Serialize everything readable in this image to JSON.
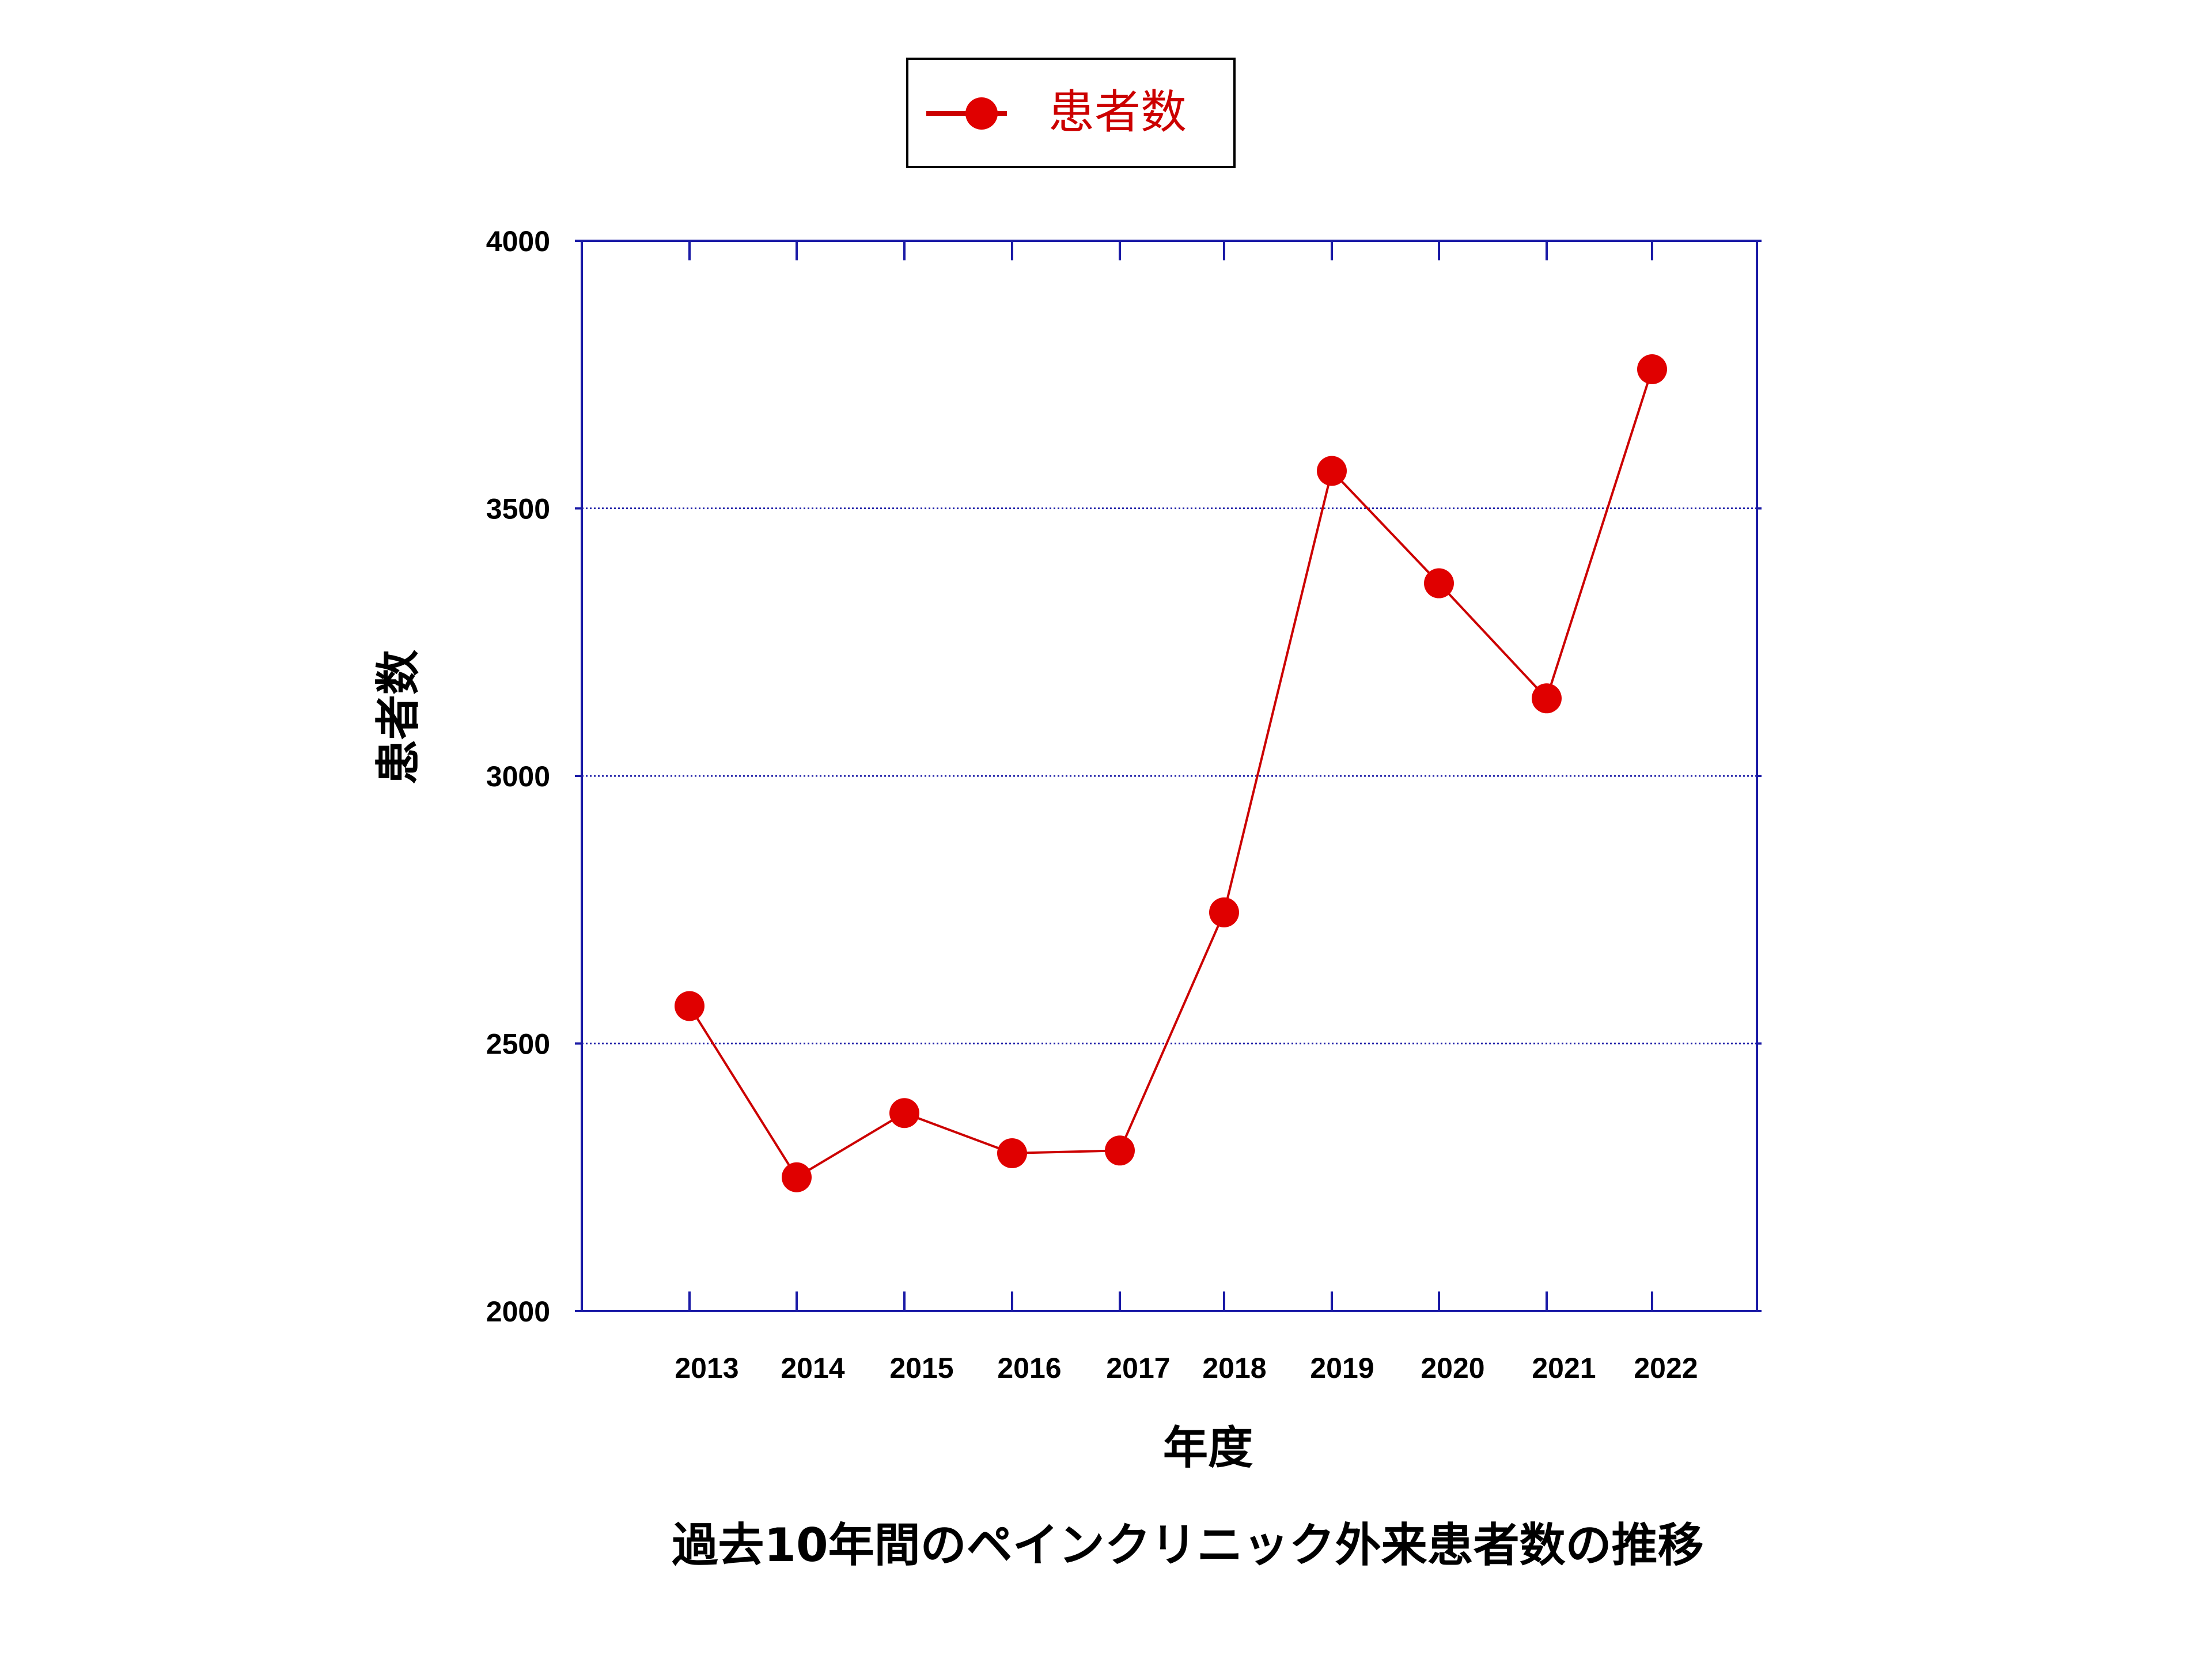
{
  "chart_data": {
    "type": "line",
    "caption": "過去10年間のペインクリニック外来患者数の推移",
    "xlabel": "年度",
    "ylabel": "患者数",
    "categories": [
      "2013",
      "2014",
      "2015",
      "2016",
      "2017",
      "2018",
      "2019",
      "2020",
      "2021",
      "2022"
    ],
    "series": [
      {
        "name": "患者数",
        "values": [
          2570,
          2250,
          2370,
          2295,
          2300,
          2745,
          3570,
          3360,
          3145,
          3760
        ]
      }
    ],
    "ylim": [
      2000,
      4000
    ],
    "yticks": [
      "2000",
      "2500",
      "3000",
      "3500",
      "4000"
    ],
    "grid": "horizontal dotted",
    "legend_position": "top",
    "colors": {
      "series": "#cc0000",
      "marker": "#e00000",
      "axis": "#1a1aa6",
      "grid": "#1a1aa6"
    }
  }
}
